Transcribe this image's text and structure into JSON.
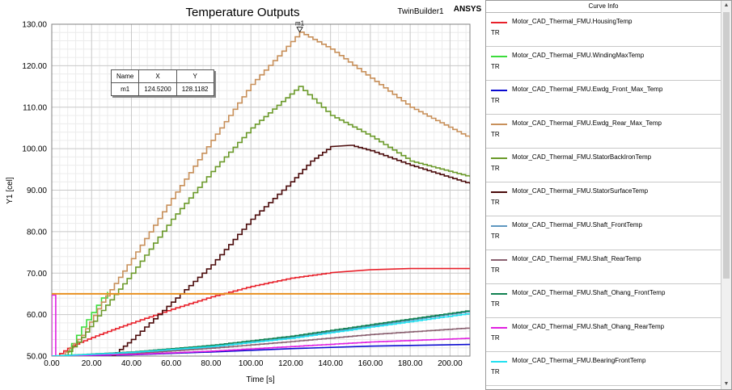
{
  "chart_data": {
    "type": "line",
    "title": "Temperature Outputs",
    "project_label": "TwinBuilder1",
    "brand_label": "ANSYS",
    "xlabel": "Time [s]",
    "ylabel": "Y1 [cel]",
    "xlim": [
      0,
      210
    ],
    "ylim": [
      50,
      130
    ],
    "x_ticks": [
      0,
      20,
      40,
      60,
      80,
      100,
      120,
      140,
      160,
      180,
      200
    ],
    "x_tick_labels": [
      "0.00",
      "20.00",
      "40.00",
      "60.00",
      "80.00",
      "100.00",
      "120.00",
      "140.00",
      "160.00",
      "180.00",
      "200.00"
    ],
    "y_ticks": [
      50,
      60,
      70,
      80,
      90,
      100,
      110,
      120,
      130
    ],
    "y_tick_labels": [
      "50.00",
      "60.00",
      "70.00",
      "80.00",
      "90.00",
      "100.00",
      "110.00",
      "120.00",
      "130.00"
    ],
    "grid": true,
    "legend_position": "right",
    "marker": {
      "name": "m1",
      "x": 124.52,
      "y": 128.1182
    },
    "series": [
      {
        "name": "Motor_CAD_Thermal_FMU.HousingTemp",
        "sub": "TR",
        "color": "#e8202a",
        "points": [
          [
            2,
            50
          ],
          [
            10,
            52.5
          ],
          [
            20,
            54.5
          ],
          [
            30,
            56.3
          ],
          [
            40,
            58
          ],
          [
            60,
            61.3
          ],
          [
            80,
            64.3
          ],
          [
            100,
            66.8
          ],
          [
            120,
            68.8
          ],
          [
            140,
            70.1
          ],
          [
            160,
            70.8
          ],
          [
            180,
            71.1
          ],
          [
            210,
            71.1
          ]
        ]
      },
      {
        "name": "Motor_CAD_Thermal_FMU.WindingMaxTemp",
        "sub": "TR",
        "color": "#3cdc3c",
        "points": [
          [
            7,
            50
          ],
          [
            10,
            53
          ],
          [
            15,
            57
          ],
          [
            20,
            60.5
          ],
          [
            25,
            64
          ],
          [
            28,
            65.5
          ]
        ]
      },
      {
        "name": "Motor_CAD_Thermal_FMU.Ewdg_Front_Max_Temp",
        "sub": "TR",
        "color": "#0a0ad0",
        "points": [
          [
            0,
            50
          ],
          [
            40,
            50.3
          ],
          [
            80,
            51
          ],
          [
            120,
            51.8
          ],
          [
            160,
            52.4
          ],
          [
            210,
            52.8
          ]
        ]
      },
      {
        "name": "Motor_CAD_Thermal_FMU.Ewdg_Rear_Max_Temp",
        "sub": "TR",
        "color": "#c8905a",
        "points": [
          [
            5,
            50
          ],
          [
            15,
            55
          ],
          [
            25,
            63
          ],
          [
            40,
            73.5
          ],
          [
            60,
            88
          ],
          [
            80,
            102
          ],
          [
            100,
            115.5
          ],
          [
            124.5,
            128.1
          ],
          [
            140,
            124
          ],
          [
            160,
            117
          ],
          [
            180,
            110
          ],
          [
            210,
            102.5
          ]
        ]
      },
      {
        "name": "Motor_CAD_Thermal_FMU.StatorBackIronTemp",
        "sub": "TR",
        "color": "#6b9a2a",
        "points": [
          [
            6,
            50
          ],
          [
            15,
            54.5
          ],
          [
            25,
            61
          ],
          [
            40,
            70
          ],
          [
            60,
            83
          ],
          [
            80,
            94.5
          ],
          [
            100,
            105
          ],
          [
            124,
            115
          ],
          [
            140,
            108
          ],
          [
            160,
            103
          ],
          [
            180,
            97
          ],
          [
            210,
            93.2
          ]
        ]
      },
      {
        "name": "Motor_CAD_Thermal_FMU.StatorSurfaceTemp",
        "sub": "TR",
        "color": "#4a0a0a",
        "points": [
          [
            30,
            50
          ],
          [
            40,
            54
          ],
          [
            60,
            63
          ],
          [
            80,
            72
          ],
          [
            100,
            83
          ],
          [
            120,
            92
          ],
          [
            130,
            97
          ],
          [
            140,
            100.5
          ],
          [
            150,
            100.8
          ],
          [
            160,
            99.5
          ],
          [
            180,
            96
          ],
          [
            210,
            91.5
          ]
        ]
      },
      {
        "name": "Motor_CAD_Thermal_FMU.Shaft_FrontTemp",
        "sub": "TR",
        "color": "#5e97c0",
        "points": [
          [
            0,
            50
          ],
          [
            40,
            50.8
          ],
          [
            80,
            52.2
          ],
          [
            120,
            54.5
          ],
          [
            160,
            57.3
          ],
          [
            210,
            60.8
          ]
        ]
      },
      {
        "name": "Motor_CAD_Thermal_FMU.Shaft_RearTemp",
        "sub": "TR",
        "color": "#8a6070",
        "points": [
          [
            0,
            50
          ],
          [
            40,
            50.6
          ],
          [
            80,
            51.9
          ],
          [
            120,
            53.5
          ],
          [
            160,
            55.2
          ],
          [
            210,
            56.8
          ]
        ]
      },
      {
        "name": "Motor_CAD_Thermal_FMU.Shaft_Ohang_FrontTemp",
        "sub": "TR",
        "color": "#108050",
        "points": [
          [
            0,
            50
          ],
          [
            40,
            51
          ],
          [
            80,
            52.6
          ],
          [
            120,
            54.8
          ],
          [
            160,
            57.6
          ],
          [
            210,
            61
          ]
        ]
      },
      {
        "name": "Motor_CAD_Thermal_FMU.Shaft_Ohang_RearTemp",
        "sub": "TR",
        "color": "#e020e0",
        "points": [
          [
            0,
            50
          ],
          [
            0,
            64.7
          ],
          [
            2,
            64.7
          ],
          [
            2,
            50
          ],
          [
            40,
            50.4
          ],
          [
            80,
            51.2
          ],
          [
            120,
            52.3
          ],
          [
            160,
            53.4
          ],
          [
            210,
            54.3
          ]
        ]
      },
      {
        "name": "Motor_CAD_Thermal_FMU.BearingFrontTemp",
        "sub": "TR",
        "color": "#20e0f0",
        "points": [
          [
            0,
            50
          ],
          [
            40,
            50.9
          ],
          [
            80,
            52.3
          ],
          [
            120,
            54.3
          ],
          [
            160,
            57
          ],
          [
            210,
            60.3
          ]
        ]
      },
      {
        "name": "",
        "sub": "",
        "color": "#e89020",
        "points": [
          [
            0,
            65
          ],
          [
            210,
            65
          ]
        ]
      }
    ]
  },
  "legend_header": "Curve Info"
}
